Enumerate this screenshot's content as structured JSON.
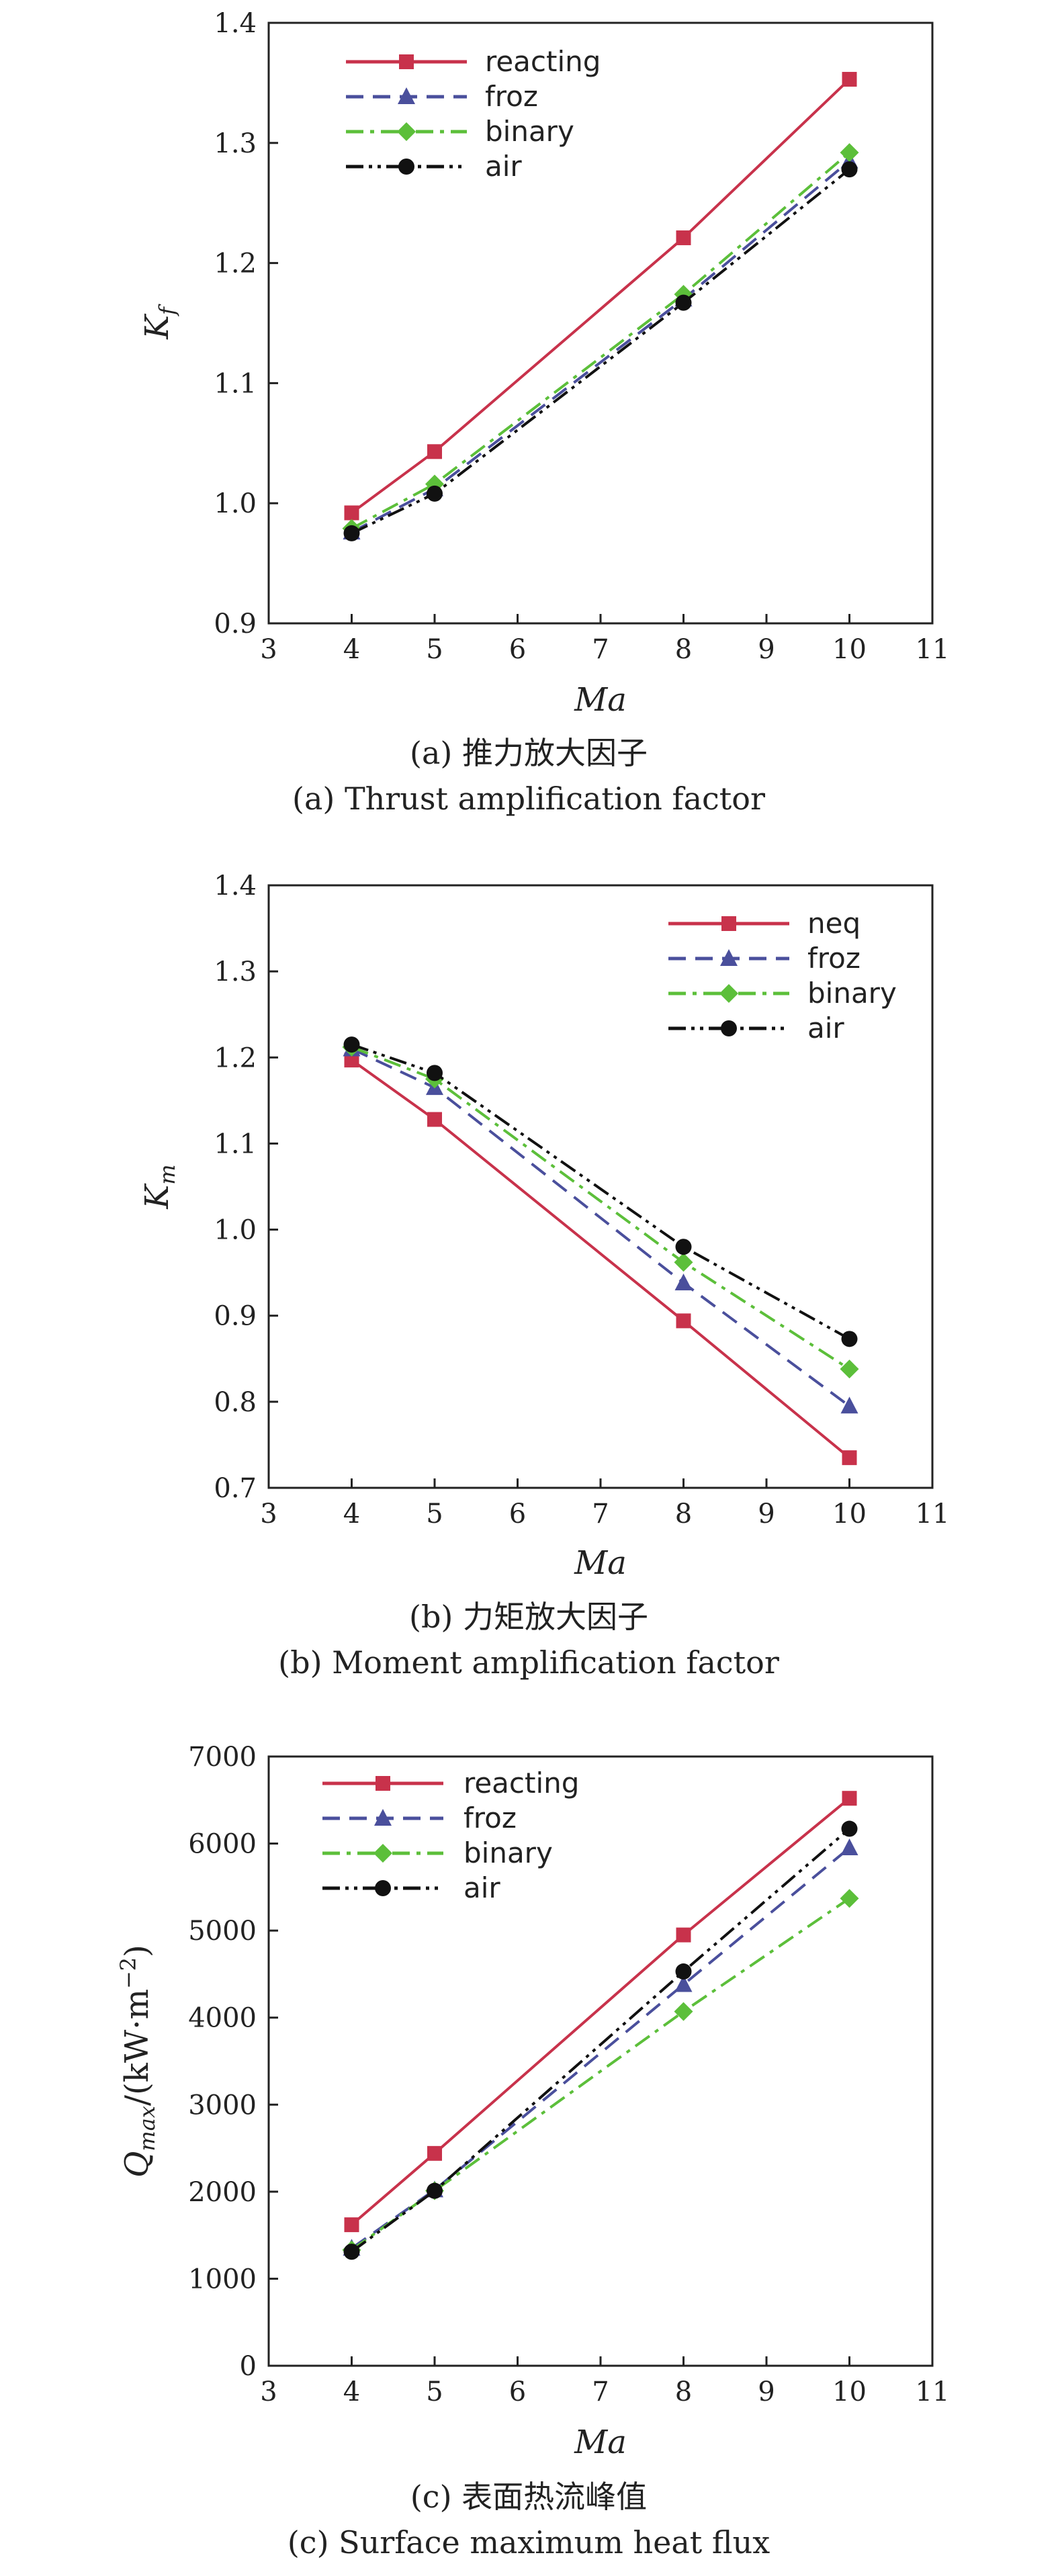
{
  "chart_data": [
    {
      "type": "line",
      "caption_cn": "(a) 推力放大因子",
      "caption_en": "(a) Thrust amplification factor",
      "xlabel": "Ma",
      "ylabel_main": "K",
      "ylabel_sub": "f",
      "xlim": [
        3,
        11
      ],
      "ylim": [
        0.9,
        1.4
      ],
      "xticks": [
        "3",
        "4",
        "5",
        "6",
        "7",
        "8",
        "9",
        "10",
        "11"
      ],
      "yticks": [
        "0.9",
        "1.0",
        "1.1",
        "1.2",
        "1.3",
        "1.4"
      ],
      "grid": false,
      "legend": "top-left",
      "x": [
        4,
        5,
        8,
        10
      ],
      "series": [
        {
          "name": "reacting",
          "values": [
            0.992,
            1.043,
            1.221,
            1.353
          ],
          "color": "#c8324b",
          "dash": "solid",
          "marker": "square"
        },
        {
          "name": "froz",
          "values": [
            0.976,
            1.012,
            1.17,
            1.285
          ],
          "color": "#4a4f9c",
          "dash": "dash",
          "marker": "triangle"
        },
        {
          "name": "binary",
          "values": [
            0.979,
            1.016,
            1.174,
            1.292
          ],
          "color": "#5cbf3a",
          "dash": "dashdot",
          "marker": "diamond"
        },
        {
          "name": "air",
          "values": [
            0.975,
            1.008,
            1.167,
            1.278
          ],
          "color": "#111111",
          "dash": "dashdotdot",
          "marker": "circle"
        }
      ]
    },
    {
      "type": "line",
      "caption_cn": "(b) 力矩放大因子",
      "caption_en": "(b) Moment amplification factor",
      "xlabel": "Ma",
      "ylabel_main": "K",
      "ylabel_sub": "m",
      "xlim": [
        3,
        11
      ],
      "ylim": [
        0.7,
        1.4
      ],
      "xticks": [
        "3",
        "4",
        "5",
        "6",
        "7",
        "8",
        "9",
        "10",
        "11"
      ],
      "yticks": [
        "0.7",
        "0.8",
        "0.9",
        "1.0",
        "1.1",
        "1.2",
        "1.3",
        "1.4"
      ],
      "grid": false,
      "legend": "top-right",
      "x": [
        4,
        5,
        8,
        10
      ],
      "series": [
        {
          "name": "neq",
          "values": [
            1.197,
            1.128,
            0.894,
            0.735
          ],
          "color": "#c8324b",
          "dash": "solid",
          "marker": "square"
        },
        {
          "name": "froz",
          "values": [
            1.21,
            1.165,
            0.938,
            0.795
          ],
          "color": "#4a4f9c",
          "dash": "dash",
          "marker": "triangle"
        },
        {
          "name": "binary",
          "values": [
            1.212,
            1.175,
            0.962,
            0.838
          ],
          "color": "#5cbf3a",
          "dash": "dashdot",
          "marker": "diamond"
        },
        {
          "name": "air",
          "values": [
            1.215,
            1.182,
            0.98,
            0.873
          ],
          "color": "#111111",
          "dash": "dashdotdot",
          "marker": "circle"
        }
      ]
    },
    {
      "type": "line",
      "caption_cn": "(c) 表面热流峰值",
      "caption_en": "(c) Surface maximum heat flux",
      "xlabel": "Ma",
      "ylabel_main": "Q",
      "ylabel_sub": "max",
      "ylabel_unit": "/(kW·m",
      "ylabel_exp": "−2",
      "ylabel_end": ")",
      "xlim": [
        3,
        11
      ],
      "ylim": [
        0,
        7000
      ],
      "xticks": [
        "3",
        "4",
        "5",
        "6",
        "7",
        "8",
        "9",
        "10",
        "11"
      ],
      "yticks": [
        "0",
        "1000",
        "2000",
        "3000",
        "4000",
        "5000",
        "6000",
        "7000"
      ],
      "grid": false,
      "legend": "top-left",
      "x": [
        4,
        5,
        8,
        10
      ],
      "series": [
        {
          "name": "reacting",
          "values": [
            1620,
            2440,
            4950,
            6520
          ],
          "color": "#c8324b",
          "dash": "solid",
          "marker": "square"
        },
        {
          "name": "froz",
          "values": [
            1350,
            2020,
            4380,
            5950
          ],
          "color": "#4a4f9c",
          "dash": "dash",
          "marker": "triangle"
        },
        {
          "name": "binary",
          "values": [
            1330,
            2010,
            4070,
            5370
          ],
          "color": "#5cbf3a",
          "dash": "dashdot",
          "marker": "diamond"
        },
        {
          "name": "air",
          "values": [
            1310,
            2010,
            4530,
            6170
          ],
          "color": "#111111",
          "dash": "dashdotdot",
          "marker": "circle"
        }
      ]
    }
  ]
}
